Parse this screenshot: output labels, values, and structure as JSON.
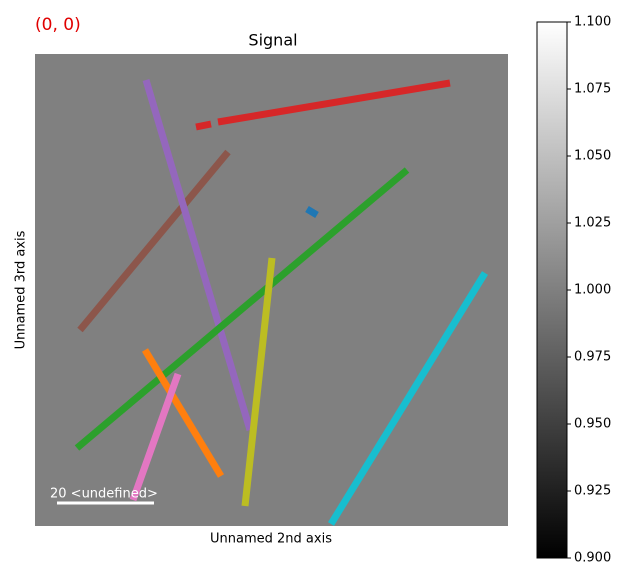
{
  "chart_data": {
    "type": "image",
    "title": "Signal",
    "corner_label": "(0, 0)",
    "xlabel": "Unnamed 2nd axis",
    "ylabel": "Unnamed 3rd axis",
    "scalebar_label": "20 <undefined>",
    "colorbar": {
      "ylim": [
        0.9,
        1.1
      ],
      "yticks": [
        {
          "value": 0.9,
          "label": "0.900"
        },
        {
          "value": 0.925,
          "label": "0.925"
        },
        {
          "value": 0.95,
          "label": "0.950"
        },
        {
          "value": 0.975,
          "label": "0.975"
        },
        {
          "value": 1.0,
          "label": "1.000"
        },
        {
          "value": 1.025,
          "label": "1.025"
        },
        {
          "value": 1.05,
          "label": "1.050"
        },
        {
          "value": 1.075,
          "label": "1.075"
        },
        {
          "value": 1.1,
          "label": "1.100"
        }
      ]
    }
  }
}
